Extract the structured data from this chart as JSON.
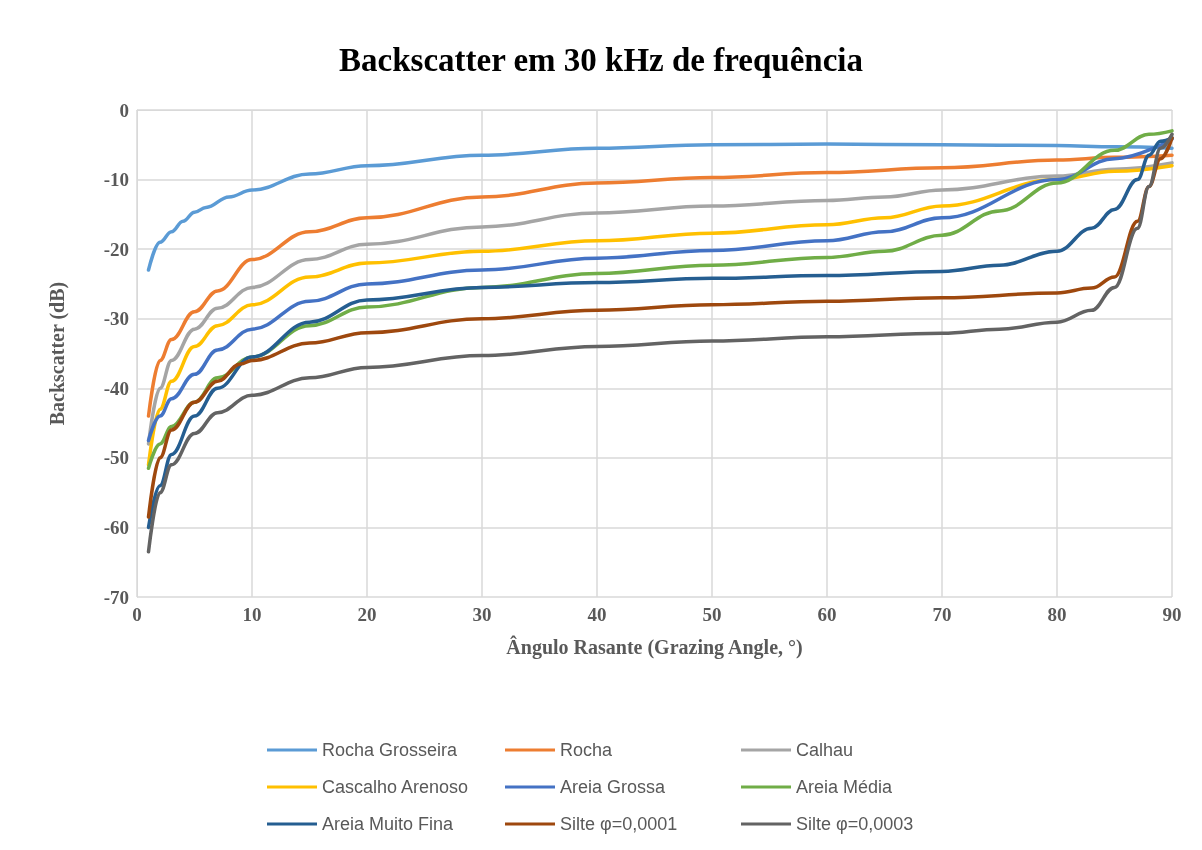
{
  "chart_data": {
    "type": "line",
    "title": "Backscatter em 30 kHz de frequência",
    "xlabel": "Ângulo Rasante (Grazing Angle, °)",
    "ylabel": "Backscatter (dB)",
    "xlim": [
      0,
      90
    ],
    "xticks": [
      0,
      10,
      20,
      30,
      40,
      50,
      60,
      70,
      80,
      90
    ],
    "ylim": [
      -70,
      0
    ],
    "yticks": [
      -70,
      -60,
      -50,
      -40,
      -30,
      -20,
      -10,
      0
    ],
    "grid": true,
    "legend": "bottom",
    "marker": "none",
    "line_style": "solid",
    "series": [
      {
        "name": "Rocha Grosseira",
        "color": "#5b9bd5",
        "x": [
          1,
          2,
          3,
          4,
          5,
          6,
          8,
          10,
          15,
          20,
          30,
          40,
          50,
          60,
          70,
          80,
          85,
          90
        ],
        "values": [
          -23,
          -19,
          -17.5,
          -16,
          -14.7,
          -14,
          -12.5,
          -11.5,
          -9.2,
          -8,
          -6.5,
          -5.5,
          -5,
          -4.9,
          -5,
          -5.1,
          -5.3,
          -5.5
        ]
      },
      {
        "name": "Rocha",
        "color": "#ed7d31",
        "x": [
          1,
          2,
          3,
          5,
          7,
          10,
          15,
          20,
          30,
          40,
          50,
          60,
          70,
          80,
          85,
          90
        ],
        "values": [
          -44,
          -36,
          -33,
          -29,
          -26,
          -21.5,
          -17.5,
          -15.5,
          -12.5,
          -10.5,
          -9.7,
          -9,
          -8.3,
          -7.2,
          -6.8,
          -6.5
        ]
      },
      {
        "name": "Calhau",
        "color": "#a5a5a5",
        "x": [
          1,
          2,
          3,
          5,
          7,
          10,
          15,
          20,
          30,
          40,
          50,
          60,
          65,
          70,
          80,
          85,
          90
        ],
        "values": [
          -48,
          -40,
          -36,
          -31.5,
          -28.5,
          -25.5,
          -21.5,
          -19.3,
          -16.8,
          -14.8,
          -13.8,
          -13,
          -12.5,
          -11.5,
          -9.5,
          -8.5,
          -7.6
        ]
      },
      {
        "name": "Cascalho Arenoso",
        "color": "#ffc000",
        "x": [
          1,
          2,
          3,
          5,
          7,
          10,
          15,
          20,
          30,
          40,
          50,
          60,
          65,
          70,
          80,
          85,
          90
        ],
        "values": [
          -51,
          -43,
          -39,
          -34,
          -31,
          -28,
          -24,
          -22,
          -20.3,
          -18.8,
          -17.7,
          -16.5,
          -15.5,
          -13.8,
          -10,
          -8.8,
          -8
        ]
      },
      {
        "name": "Areia Grossa",
        "color": "#4472c4",
        "x": [
          1,
          2,
          3,
          5,
          7,
          10,
          15,
          20,
          30,
          40,
          50,
          60,
          65,
          70,
          80,
          85,
          90
        ],
        "values": [
          -47.5,
          -44,
          -41.5,
          -38,
          -34.5,
          -31.5,
          -27.5,
          -25,
          -23,
          -21.3,
          -20.2,
          -18.8,
          -17.5,
          -15.5,
          -10,
          -7,
          -4.2
        ]
      },
      {
        "name": "Areia Média",
        "color": "#70ad47",
        "x": [
          1,
          2,
          3,
          5,
          7,
          10,
          15,
          20,
          30,
          40,
          50,
          60,
          65,
          70,
          75,
          80,
          85,
          88,
          90
        ],
        "values": [
          -51.5,
          -48,
          -45.5,
          -42,
          -38.5,
          -35.5,
          -31,
          -28.3,
          -25.5,
          -23.5,
          -22.3,
          -21.2,
          -20.3,
          -18,
          -14.5,
          -10.5,
          -5.8,
          -3.5,
          -3
        ]
      },
      {
        "name": "Areia Muito Fina",
        "color": "#255e91",
        "x": [
          1,
          2,
          3,
          5,
          7,
          10,
          15,
          20,
          30,
          40,
          50,
          60,
          70,
          75,
          80,
          83,
          85,
          87,
          88,
          89,
          90
        ],
        "values": [
          -60,
          -54,
          -49.5,
          -44,
          -40,
          -35.5,
          -30.5,
          -27.3,
          -25.5,
          -24.8,
          -24.2,
          -23.8,
          -23.2,
          -22.3,
          -20.3,
          -17,
          -14.3,
          -10,
          -6.5,
          -4.5,
          -4
        ]
      },
      {
        "name": "Silte φ=0,0001",
        "color": "#9e480e",
        "x": [
          1,
          2,
          3,
          5,
          7,
          9,
          10,
          15,
          20,
          30,
          40,
          50,
          60,
          70,
          80,
          83,
          85,
          87,
          88,
          89,
          90
        ],
        "values": [
          -58.5,
          -50,
          -46,
          -42,
          -39,
          -36.5,
          -36,
          -33.5,
          -32,
          -30,
          -28.8,
          -28,
          -27.5,
          -27,
          -26.3,
          -25.6,
          -24,
          -16,
          -11,
          -7,
          -4
        ]
      },
      {
        "name": "Silte φ=0,0003",
        "color": "#636363",
        "x": [
          1,
          2,
          3,
          5,
          7,
          10,
          15,
          20,
          30,
          40,
          50,
          60,
          70,
          75,
          80,
          83,
          85,
          87,
          88,
          89,
          90
        ],
        "values": [
          -63.5,
          -55,
          -51,
          -46.5,
          -43.5,
          -41,
          -38.5,
          -37,
          -35.3,
          -34,
          -33.2,
          -32.6,
          -32.1,
          -31.5,
          -30.5,
          -28.8,
          -25.5,
          -17,
          -11,
          -5.5,
          -3.5
        ]
      }
    ]
  }
}
